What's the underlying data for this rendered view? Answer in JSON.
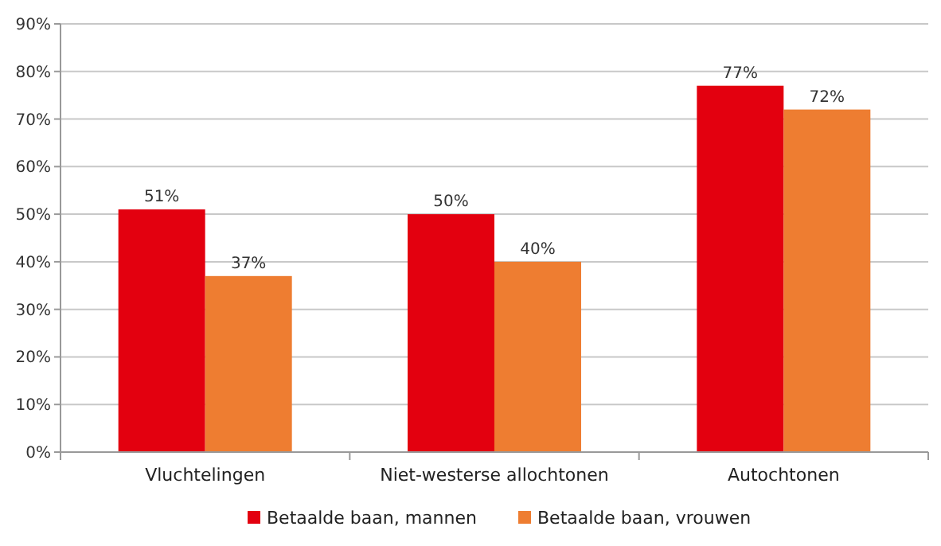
{
  "chart_data": {
    "type": "bar",
    "categories": [
      "Vluchtelingen",
      "Niet-westerse allochtonen",
      "Autochtonen"
    ],
    "series": [
      {
        "name": "Betaalde baan, mannen",
        "color": "#e3000f",
        "values": [
          51,
          50,
          77
        ],
        "value_labels": [
          "51%",
          "50%",
          "77%"
        ]
      },
      {
        "name": "Betaalde baan, vrouwen",
        "color": "#ee7d31",
        "values": [
          37,
          40,
          72
        ],
        "value_labels": [
          "37%",
          "40%",
          "72%"
        ]
      }
    ],
    "ylim": [
      0,
      90
    ],
    "yticks": [
      {
        "value": 0,
        "label": "0%"
      },
      {
        "value": 10,
        "label": "10%"
      },
      {
        "value": 20,
        "label": "20%"
      },
      {
        "value": 30,
        "label": "30%"
      },
      {
        "value": 40,
        "label": "40%"
      },
      {
        "value": 50,
        "label": "50%"
      },
      {
        "value": 60,
        "label": "60%"
      },
      {
        "value": 70,
        "label": "70%"
      },
      {
        "value": 80,
        "label": "80%"
      },
      {
        "value": 90,
        "label": "90%"
      }
    ],
    "grid": "y",
    "legend": "bottom"
  }
}
